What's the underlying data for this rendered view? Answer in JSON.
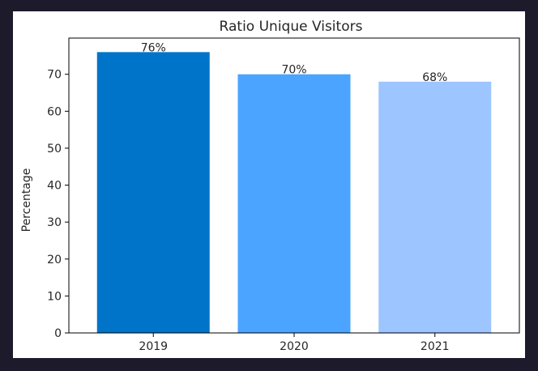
{
  "chart_data": {
    "type": "bar",
    "title": "Ratio Unique Visitors",
    "xlabel": "",
    "ylabel": "Percentage",
    "categories": [
      "2019",
      "2020",
      "2021"
    ],
    "values": [
      76,
      70,
      68
    ],
    "value_labels": [
      "76%",
      "70%",
      "68%"
    ],
    "colors": [
      "#0074c8",
      "#4ba4ff",
      "#9dc5ff"
    ],
    "ylim": [
      0,
      79.8
    ],
    "yticks": [
      0,
      10,
      20,
      30,
      40,
      50,
      60,
      70
    ],
    "grid": false,
    "legend": "none"
  }
}
